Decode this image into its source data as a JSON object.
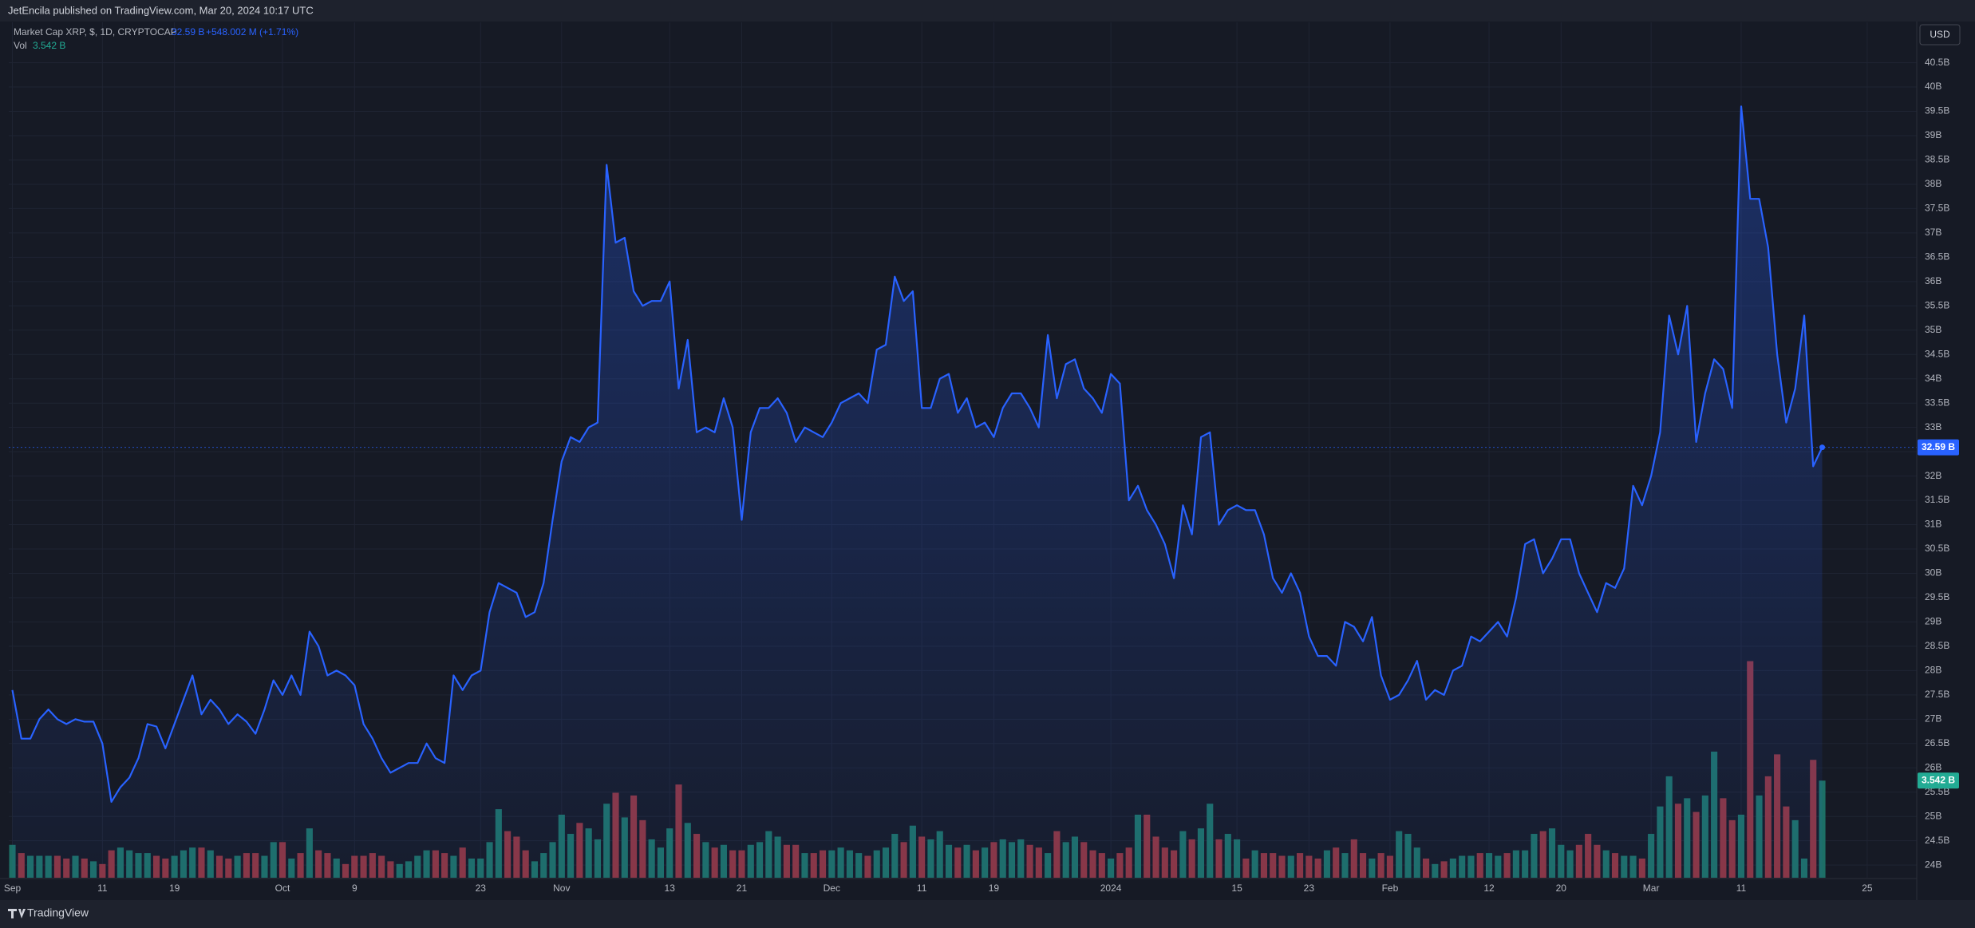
{
  "header": "JetEncila published on TradingView.com, Mar 20, 2024 10:17 UTC",
  "footer": "TradingView",
  "currency": "USD",
  "chart_data": {
    "type": "area",
    "grid": true,
    "xlim": [
      -0.4,
      211.5
    ],
    "ylim": [
      23.74,
      41.33
    ],
    "vlim": [
      0,
      31.2
    ],
    "xticks": [
      {
        "value": 0,
        "label": "Sep"
      },
      {
        "value": 10,
        "label": "11"
      },
      {
        "value": 18,
        "label": "19"
      },
      {
        "value": 30,
        "label": "Oct"
      },
      {
        "value": 38,
        "label": "9"
      },
      {
        "value": 52,
        "label": "23"
      },
      {
        "value": 61,
        "label": "Nov"
      },
      {
        "value": 73,
        "label": "13"
      },
      {
        "value": 81,
        "label": "21"
      },
      {
        "value": 91,
        "label": "Dec"
      },
      {
        "value": 101,
        "label": "11"
      },
      {
        "value": 109,
        "label": "19"
      },
      {
        "value": 122,
        "label": "2024"
      },
      {
        "value": 136,
        "label": "15"
      },
      {
        "value": 144,
        "label": "23"
      },
      {
        "value": 153,
        "label": "Feb"
      },
      {
        "value": 164,
        "label": "12"
      },
      {
        "value": 172,
        "label": "20"
      },
      {
        "value": 182,
        "label": "Mar"
      },
      {
        "value": 192,
        "label": "11"
      },
      {
        "value": 206,
        "label": "25"
      }
    ],
    "yticks": [
      {
        "value": 24,
        "label": "24B"
      },
      {
        "value": 24.5,
        "label": "24.5B"
      },
      {
        "value": 25,
        "label": "25B"
      },
      {
        "value": 25.5,
        "label": "25.5B"
      },
      {
        "value": 26,
        "label": "26B"
      },
      {
        "value": 26.5,
        "label": "26.5B"
      },
      {
        "value": 27,
        "label": "27B"
      },
      {
        "value": 27.5,
        "label": "27.5B"
      },
      {
        "value": 28,
        "label": "28B"
      },
      {
        "value": 28.5,
        "label": "28.5B"
      },
      {
        "value": 29,
        "label": "29B"
      },
      {
        "value": 29.5,
        "label": "29.5B"
      },
      {
        "value": 30,
        "label": "30B"
      },
      {
        "value": 30.5,
        "label": "30.5B"
      },
      {
        "value": 31,
        "label": "31B"
      },
      {
        "value": 31.5,
        "label": "31.5B"
      },
      {
        "value": 32,
        "label": "32B"
      },
      {
        "value": 32.5,
        "label": "32.5B"
      },
      {
        "value": 33,
        "label": "33B"
      },
      {
        "value": 33.5,
        "label": "33.5B"
      },
      {
        "value": 34,
        "label": "34B"
      },
      {
        "value": 34.5,
        "label": "34.5B"
      },
      {
        "value": 35,
        "label": "35B"
      },
      {
        "value": 35.5,
        "label": "35.5B"
      },
      {
        "value": 36,
        "label": "36B"
      },
      {
        "value": 36.5,
        "label": "36.5B"
      },
      {
        "value": 37,
        "label": "37B"
      },
      {
        "value": 37.5,
        "label": "37.5B"
      },
      {
        "value": 38,
        "label": "38B"
      },
      {
        "value": 38.5,
        "label": "38.5B"
      },
      {
        "value": 39,
        "label": "39B"
      },
      {
        "value": 39.5,
        "label": "39.5B"
      },
      {
        "value": 40,
        "label": "40B"
      },
      {
        "value": 40.5,
        "label": "40.5B"
      }
    ],
    "series": [
      {
        "name": "Market Cap XRP, $, 1D, CRYPTOCAP",
        "color": "#2962ff",
        "value_label": "32.59 B",
        "change_label": "+548.002 M (+1.71%)",
        "values": [
          27.6,
          26.6,
          26.6,
          27.0,
          27.2,
          27.0,
          26.9,
          27.0,
          26.95,
          26.95,
          26.5,
          25.3,
          25.6,
          25.8,
          26.2,
          26.9,
          26.85,
          26.4,
          26.9,
          27.4,
          27.9,
          27.1,
          27.4,
          27.2,
          26.9,
          27.1,
          26.95,
          26.7,
          27.2,
          27.8,
          27.5,
          27.9,
          27.5,
          28.8,
          28.5,
          27.9,
          28.0,
          27.9,
          27.7,
          26.9,
          26.6,
          26.2,
          25.9,
          26.0,
          26.1,
          26.1,
          26.5,
          26.2,
          26.1,
          27.9,
          27.6,
          27.9,
          28.0,
          29.2,
          29.8,
          29.7,
          29.6,
          29.1,
          29.2,
          29.8,
          31.1,
          32.3,
          32.8,
          32.7,
          33.0,
          33.1,
          38.4,
          36.8,
          36.9,
          35.8,
          35.5,
          35.6,
          35.6,
          36.0,
          33.8,
          34.8,
          32.9,
          33.0,
          32.9,
          33.6,
          33.0,
          31.1,
          32.9,
          33.4,
          33.4,
          33.6,
          33.3,
          32.7,
          33.0,
          32.9,
          32.8,
          33.1,
          33.5,
          33.6,
          33.7,
          33.5,
          34.6,
          34.7,
          36.1,
          35.6,
          35.8,
          33.4,
          33.4,
          34.0,
          34.1,
          33.3,
          33.6,
          33.0,
          33.1,
          32.8,
          33.4,
          33.7,
          33.7,
          33.4,
          33.0,
          34.9,
          33.6,
          34.3,
          34.4,
          33.8,
          33.6,
          33.3,
          34.1,
          33.9,
          31.5,
          31.8,
          31.3,
          31.0,
          30.6,
          29.9,
          31.4,
          30.8,
          32.8,
          32.9,
          31.0,
          31.3,
          31.4,
          31.3,
          31.3,
          30.8,
          29.9,
          29.6,
          30.0,
          29.6,
          28.7,
          28.3,
          28.3,
          28.1,
          29.0,
          28.9,
          28.6,
          29.1,
          27.9,
          27.4,
          27.5,
          27.8,
          28.2,
          27.4,
          27.6,
          27.5,
          28.0,
          28.1,
          28.7,
          28.6,
          28.8,
          29.0,
          28.7,
          29.5,
          30.6,
          30.7,
          30.0,
          30.3,
          30.7,
          30.7,
          30.0,
          29.6,
          29.2,
          29.8,
          29.7,
          30.1,
          31.8,
          31.4,
          32.0,
          32.9,
          35.3,
          34.5,
          35.5,
          32.7,
          33.7,
          34.4,
          34.2,
          33.4,
          39.6,
          37.7,
          37.7,
          36.7,
          34.5,
          33.1,
          33.8,
          35.3,
          32.2,
          32.59
        ]
      },
      {
        "name": "Vol",
        "type": "bar",
        "axis": "volume",
        "color": "#22ab94",
        "up_color": "#1d6f66",
        "down_color": "#8c3540",
        "value_label": "3.542 B",
        "values": [
          1.2,
          0.9,
          0.8,
          0.8,
          0.8,
          0.8,
          0.7,
          0.8,
          0.7,
          0.6,
          0.5,
          1.0,
          1.1,
          1.0,
          0.9,
          0.9,
          0.8,
          0.7,
          0.8,
          1.0,
          1.1,
          1.1,
          1.0,
          0.8,
          0.7,
          0.8,
          0.9,
          0.9,
          0.8,
          1.3,
          1.3,
          0.7,
          0.9,
          1.8,
          1.0,
          0.9,
          0.7,
          0.5,
          0.8,
          0.8,
          0.9,
          0.8,
          0.6,
          0.5,
          0.6,
          0.8,
          1.0,
          1.0,
          0.9,
          0.8,
          1.1,
          0.7,
          0.7,
          1.3,
          2.5,
          1.7,
          1.5,
          1.0,
          0.6,
          0.9,
          1.3,
          2.3,
          1.6,
          2.0,
          1.8,
          1.4,
          2.7,
          3.1,
          2.2,
          3.0,
          2.1,
          1.4,
          1.1,
          1.8,
          3.4,
          2.0,
          1.6,
          1.3,
          1.1,
          1.2,
          1.0,
          1.0,
          1.2,
          1.3,
          1.7,
          1.5,
          1.2,
          1.2,
          0.9,
          0.9,
          1.0,
          1.0,
          1.1,
          1.0,
          0.9,
          0.8,
          1.0,
          1.1,
          1.6,
          1.3,
          1.9,
          1.5,
          1.4,
          1.7,
          1.2,
          1.1,
          1.2,
          1.0,
          1.1,
          1.3,
          1.4,
          1.3,
          1.4,
          1.2,
          1.1,
          0.9,
          1.7,
          1.3,
          1.5,
          1.3,
          1.0,
          0.9,
          0.7,
          0.9,
          1.1,
          2.3,
          2.3,
          1.5,
          1.1,
          1.0,
          1.7,
          1.4,
          1.8,
          2.7,
          1.4,
          1.6,
          1.4,
          0.7,
          1.0,
          0.9,
          0.9,
          0.8,
          0.8,
          0.9,
          0.8,
          0.7,
          1.0,
          1.1,
          0.9,
          1.4,
          0.9,
          0.7,
          0.9,
          0.8,
          1.7,
          1.6,
          1.1,
          0.7,
          0.5,
          0.6,
          0.7,
          0.8,
          0.8,
          0.9,
          0.9,
          0.8,
          0.9,
          1.0,
          1.0,
          1.6,
          1.7,
          1.8,
          1.2,
          1.0,
          1.2,
          1.6,
          1.2,
          1.0,
          0.9,
          0.8,
          0.8,
          0.7,
          1.6,
          2.6,
          3.7,
          2.7,
          2.9,
          2.4,
          3.0,
          4.6,
          2.9,
          2.1,
          2.3,
          7.9,
          3.0,
          3.7,
          4.5,
          2.6,
          2.1,
          0.7,
          4.3,
          3.542
        ]
      }
    ]
  }
}
